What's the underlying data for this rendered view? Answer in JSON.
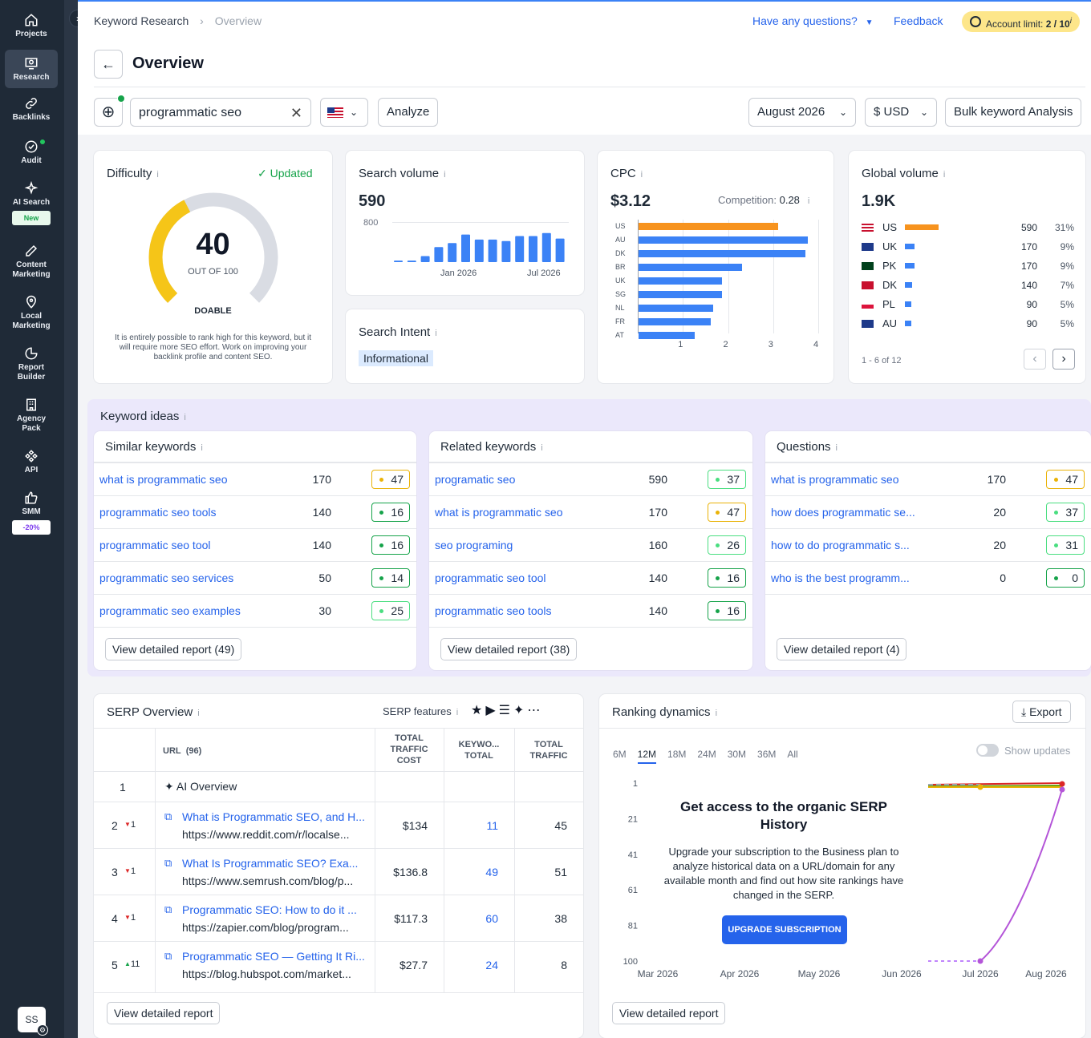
{
  "sidebar": {
    "items": [
      {
        "label": "Projects"
      },
      {
        "label": "Research"
      },
      {
        "label": "Backlinks"
      },
      {
        "label": "Audit"
      },
      {
        "label": "AI Search",
        "badge": "New"
      },
      {
        "label1": "Content",
        "label2": "Marketing"
      },
      {
        "label1": "Local",
        "label2": "Marketing"
      },
      {
        "label1": "Report",
        "label2": "Builder"
      },
      {
        "label1": "Agency",
        "label2": "Pack"
      },
      {
        "label": "API"
      },
      {
        "label": "SMM",
        "badge": "-20%"
      }
    ],
    "avatar": "SS"
  },
  "header": {
    "breadcrumb": [
      "Keyword Research",
      "Overview"
    ],
    "questions": "Have any questions?",
    "feedback": "Feedback",
    "account_label": "Account limit:",
    "account_value": "2 / 10"
  },
  "page": {
    "title": "Overview"
  },
  "search": {
    "keyword": "programmatic seo",
    "analyze": "Analyze",
    "month": "August 2026",
    "currency": "$ USD",
    "bulk": "Bulk keyword Analysis"
  },
  "difficulty": {
    "title": "Difficulty",
    "updated": "Updated",
    "value": "40",
    "out_of": "OUT OF 100",
    "level": "DOABLE",
    "note": "It is entirely possible to rank high for this keyword, but it will require more SEO effort. Work on improving your backlink profile and content SEO.",
    "score": 40
  },
  "search_volume": {
    "title": "Search volume",
    "value": "590",
    "ytick": "800",
    "xticks": [
      "Jan 2026",
      "Jul 2026"
    ],
    "bars": [
      30,
      30,
      120,
      300,
      380,
      550,
      450,
      450,
      420,
      520,
      520,
      580,
      470
    ]
  },
  "intent": {
    "title": "Search Intent",
    "value": "Informational"
  },
  "cpc": {
    "title": "CPC",
    "value": "$3.12",
    "competition_label": "Competition:",
    "competition": "0.28",
    "countries": [
      "US",
      "AU",
      "DK",
      "BR",
      "UK",
      "SG",
      "NL",
      "FR",
      "AT"
    ],
    "values": [
      3.1,
      3.75,
      3.7,
      2.3,
      1.85,
      1.85,
      1.65,
      1.6,
      1.25
    ],
    "xticks": [
      "1",
      "2",
      "3",
      "4"
    ]
  },
  "global_volume": {
    "title": "Global volume",
    "value": "1.9K",
    "rows": [
      {
        "c": "US",
        "v": "590",
        "p": "31%",
        "frac": 0.31
      },
      {
        "c": "UK",
        "v": "170",
        "p": "9%",
        "frac": 0.09
      },
      {
        "c": "PK",
        "v": "170",
        "p": "9%",
        "frac": 0.09
      },
      {
        "c": "DK",
        "v": "140",
        "p": "7%",
        "frac": 0.07
      },
      {
        "c": "PL",
        "v": "90",
        "p": "5%",
        "frac": 0.05
      },
      {
        "c": "AU",
        "v": "90",
        "p": "5%",
        "frac": 0.05
      }
    ],
    "pager": "1 - 6 of 12"
  },
  "keyword_ideas": {
    "title": "Keyword ideas",
    "similar": {
      "title": "Similar keywords",
      "rows": [
        {
          "k": "what is programmatic seo",
          "v": "170",
          "d": "47",
          "c": "y"
        },
        {
          "k": "programmatic seo tools",
          "v": "140",
          "d": "16",
          "c": "g"
        },
        {
          "k": "programmatic seo tool",
          "v": "140",
          "d": "16",
          "c": "g"
        },
        {
          "k": "programmatic seo services",
          "v": "50",
          "d": "14",
          "c": "g"
        },
        {
          "k": "programmatic seo examples",
          "v": "30",
          "d": "25",
          "c": "lg"
        }
      ],
      "btn": "View detailed report (49)"
    },
    "related": {
      "title": "Related keywords",
      "rows": [
        {
          "k": "programatic seo",
          "v": "590",
          "d": "37",
          "c": "lg"
        },
        {
          "k": "what is programmatic seo",
          "v": "170",
          "d": "47",
          "c": "y"
        },
        {
          "k": "seo programing",
          "v": "160",
          "d": "26",
          "c": "lg"
        },
        {
          "k": "programmatic seo tool",
          "v": "140",
          "d": "16",
          "c": "g"
        },
        {
          "k": "programmatic seo tools",
          "v": "140",
          "d": "16",
          "c": "g"
        }
      ],
      "btn": "View detailed report (38)"
    },
    "questions": {
      "title": "Questions",
      "rows": [
        {
          "k": "what is programmatic seo",
          "v": "170",
          "d": "47",
          "c": "y"
        },
        {
          "k": "how does programmatic se...",
          "v": "20",
          "d": "37",
          "c": "lg"
        },
        {
          "k": "how to do programmatic s...",
          "v": "20",
          "d": "31",
          "c": "lg"
        },
        {
          "k": "who is the best programm...",
          "v": "0",
          "d": "0",
          "c": "g"
        }
      ],
      "btn": "View detailed report (4)"
    }
  },
  "serp": {
    "title": "SERP Overview",
    "features": "SERP features",
    "cols": {
      "url": "URL",
      "url_count": "(96)",
      "ttc1": "TOTAL",
      "ttc2": "TRAFFIC",
      "ttc3": "COST",
      "kw1": "KEYWO...",
      "kw2": "TOTAL",
      "tt1": "TOTAL",
      "tt2": "TRAFFIC"
    },
    "ai": {
      "n": "1",
      "label": "AI Overview"
    },
    "rows": [
      {
        "n": "2",
        "ch": "1",
        "dir": "down",
        "t": "What is Programmatic SEO, and H...",
        "u": "https://www.reddit.com/r/localse...",
        "cost": "$134",
        "kw": "11",
        "tr": "45"
      },
      {
        "n": "3",
        "ch": "1",
        "dir": "down",
        "t": "What Is Programmatic SEO? Exa...",
        "u": "https://www.semrush.com/blog/p...",
        "cost": "$136.8",
        "kw": "49",
        "tr": "51"
      },
      {
        "n": "4",
        "ch": "1",
        "dir": "down",
        "t": "Programmatic SEO: How to do it ...",
        "u": "https://zapier.com/blog/program...",
        "cost": "$117.3",
        "kw": "60",
        "tr": "38"
      },
      {
        "n": "5",
        "ch": "11",
        "dir": "up",
        "t": "Programmatic SEO — Getting It Ri...",
        "u": "https://blog.hubspot.com/market...",
        "cost": "$27.7",
        "kw": "24",
        "tr": "8"
      }
    ],
    "btn": "View detailed report"
  },
  "ranking": {
    "title": "Ranking dynamics",
    "export": "Export",
    "tabs": [
      "6M",
      "12M",
      "18M",
      "24M",
      "30M",
      "36M",
      "All"
    ],
    "show_updates": "Show updates",
    "yticks": [
      "1",
      "21",
      "41",
      "61",
      "81",
      "100"
    ],
    "xticks": [
      "Mar 2026",
      "Apr 2026",
      "May 2026",
      "Jun 2026",
      "Jul 2026",
      "Aug 2026"
    ],
    "promo_title": "Get access to the organic SERP History",
    "promo_text": "Upgrade your subscription to the Business plan to analyze historical data on a URL/domain for any available month and find out how site rankings have changed in the SERP.",
    "upgrade": "UPGRADE SUBSCRIPTION",
    "btn": "View detailed report"
  }
}
